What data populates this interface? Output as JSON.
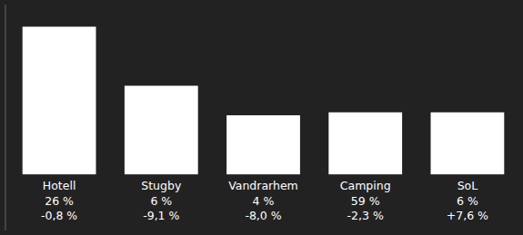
{
  "chart_data": {
    "type": "bar",
    "categories": [
      "Hotell",
      "Stugby",
      "Vandrarhem",
      "Camping",
      "SoL"
    ],
    "values": [
      100,
      60,
      40,
      42,
      42
    ],
    "annotations": [
      [
        "26 %",
        "-0,8 %"
      ],
      [
        "6 %",
        "-9,1 %"
      ],
      [
        "4 %",
        "-8,0 %"
      ],
      [
        "59 %",
        "-2,3 %"
      ],
      [
        "6 %",
        "+7,6 %"
      ]
    ],
    "color": "#ffffff",
    "ylim": [
      -38,
      115
    ],
    "tick_labels": false,
    "grid": false
  }
}
